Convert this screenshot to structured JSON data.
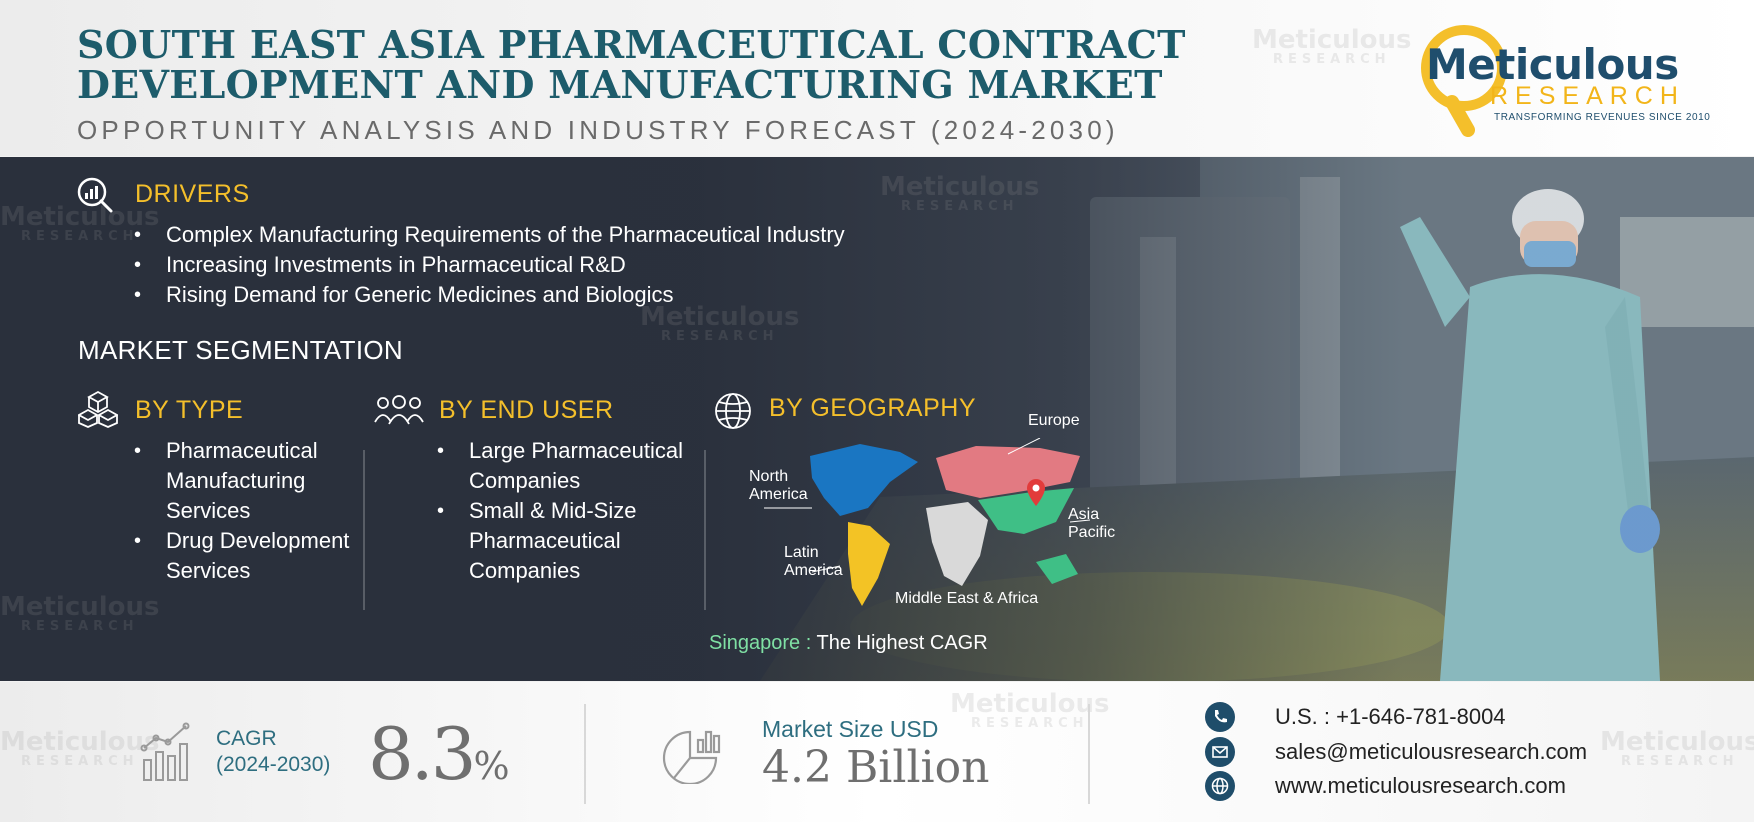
{
  "header": {
    "title_line1": "SOUTH EAST ASIA PHARMACEUTICAL CONTRACT",
    "title_line2": "DEVELOPMENT AND MANUFACTURING MARKET",
    "subtitle": "OPPORTUNITY ANALYSIS AND INDUSTRY FORECAST (2024-2030)"
  },
  "logo": {
    "word": "Meticulous",
    "research": "RESEARCH",
    "tagline": "TRANSFORMING REVENUES SINCE 2010"
  },
  "watermark": {
    "word": "Meticulous",
    "sub": "RESEARCH"
  },
  "drivers": {
    "heading": "DRIVERS",
    "items": [
      "Complex Manufacturing Requirements of the Pharmaceutical Industry",
      "Increasing Investments in Pharmaceutical R&D",
      "Rising Demand for Generic Medicines and Biologics"
    ]
  },
  "segmentation": {
    "heading": "MARKET SEGMENTATION",
    "by_type": {
      "heading": "BY TYPE",
      "items": [
        "Pharmaceutical Manufacturing Services",
        "Drug Development Services"
      ]
    },
    "by_end_user": {
      "heading": "BY END USER",
      "items": [
        "Large Pharmaceutical Companies",
        "Small & Mid-Size Pharmaceutical Companies"
      ]
    },
    "by_geography": {
      "heading": "BY GEOGRAPHY",
      "regions": {
        "europe": "Europe",
        "north_america_1": "North",
        "north_america_2": "America",
        "asia_pacific_1": "Asia",
        "asia_pacific_2": "Pacific",
        "latin_america_1": "Latin",
        "latin_america_2": "America",
        "mea": "Middle East & Africa"
      },
      "region_colors": {
        "north_america": "#1a76c2",
        "europe": "#e27a82",
        "asia_pacific": "#3fbf86",
        "latin_america": "#f3c325",
        "mea": "#d9d9d9"
      },
      "highest_country": "Singapore",
      "highest_separator": " : ",
      "highest_text": "The Highest CAGR"
    }
  },
  "metrics": {
    "cagr_label": "CAGR",
    "cagr_period": "(2024-2030)",
    "cagr_value": "8.3",
    "cagr_unit": "%",
    "market_size_label": "Market Size USD",
    "market_size_value": "4.2 Billion"
  },
  "contact": {
    "phone": "U.S. : +1-646-781-8004",
    "email": "sales@meticulousresearch.com",
    "website": "www.meticulousresearch.com"
  },
  "colors": {
    "title": "#1d5c6b",
    "accent_yellow": "#f4bf2b",
    "band_dark": "#2d3441",
    "metric_teal": "#2e6e80",
    "contact_icon": "#1f4d6a"
  },
  "icons": [
    "drivers-chart-magnifier-icon",
    "cubes-icon",
    "users-group-icon",
    "globe-icon",
    "bar-chart-trend-icon",
    "pie-chart-icon",
    "phone-icon",
    "mail-icon",
    "globe-web-icon"
  ]
}
